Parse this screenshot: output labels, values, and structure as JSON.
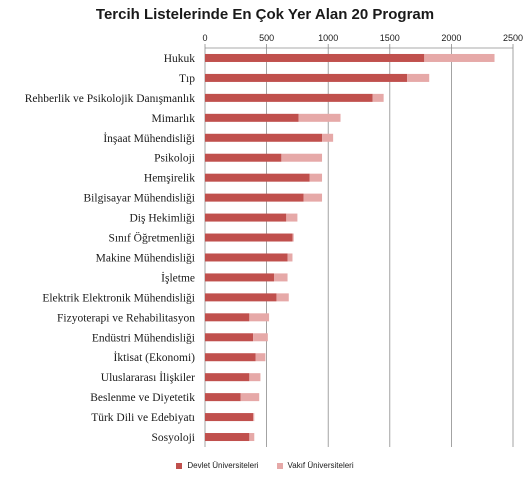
{
  "chart_data": {
    "type": "bar",
    "orientation": "horizontal",
    "stacked": true,
    "title": "Tercih Listelerinde En Çok Yer Alan 20 Program",
    "categories": [
      "Hukuk",
      "Tıp",
      "Rehberlik ve Psikolojik Danışmanlık",
      "Mimarlık",
      "İnşaat Mühendisliği",
      "Psikoloji",
      "Hemşirelik",
      "Bilgisayar Mühendisliği",
      "Diş Hekimliği",
      "Sınıf Öğretmenliği",
      "Makine Mühendisliği",
      "İşletme",
      "Elektrik Elektronik Mühendisliği",
      "Fizyoterapi ve Rehabilitasyon",
      "Endüstri Mühendisliği",
      "İktisat (Ekonomi)",
      "Uluslararası İlişkiler",
      "Beslenme ve Diyetetik",
      "Türk Dili ve Edebiyatı",
      "Sosyoloji"
    ],
    "series": [
      {
        "name": "Devlet Üniversiteleri",
        "color": "#c0504d",
        "values": [
          1780,
          1640,
          1360,
          760,
          950,
          620,
          850,
          800,
          660,
          710,
          670,
          560,
          580,
          360,
          390,
          410,
          360,
          290,
          390,
          360
        ]
      },
      {
        "name": "Vakıf Üniversiteleri",
        "color": "#e6a9a8",
        "values": [
          570,
          180,
          90,
          340,
          90,
          330,
          100,
          150,
          90,
          10,
          40,
          110,
          100,
          160,
          120,
          80,
          90,
          150,
          10,
          40
        ]
      }
    ],
    "xlim": [
      0,
      2500
    ],
    "xticks": [
      "0",
      "500",
      "1000",
      "1500",
      "2000",
      "2500"
    ],
    "xaxis_position": "top",
    "grid": true,
    "legend_position": "bottom"
  }
}
